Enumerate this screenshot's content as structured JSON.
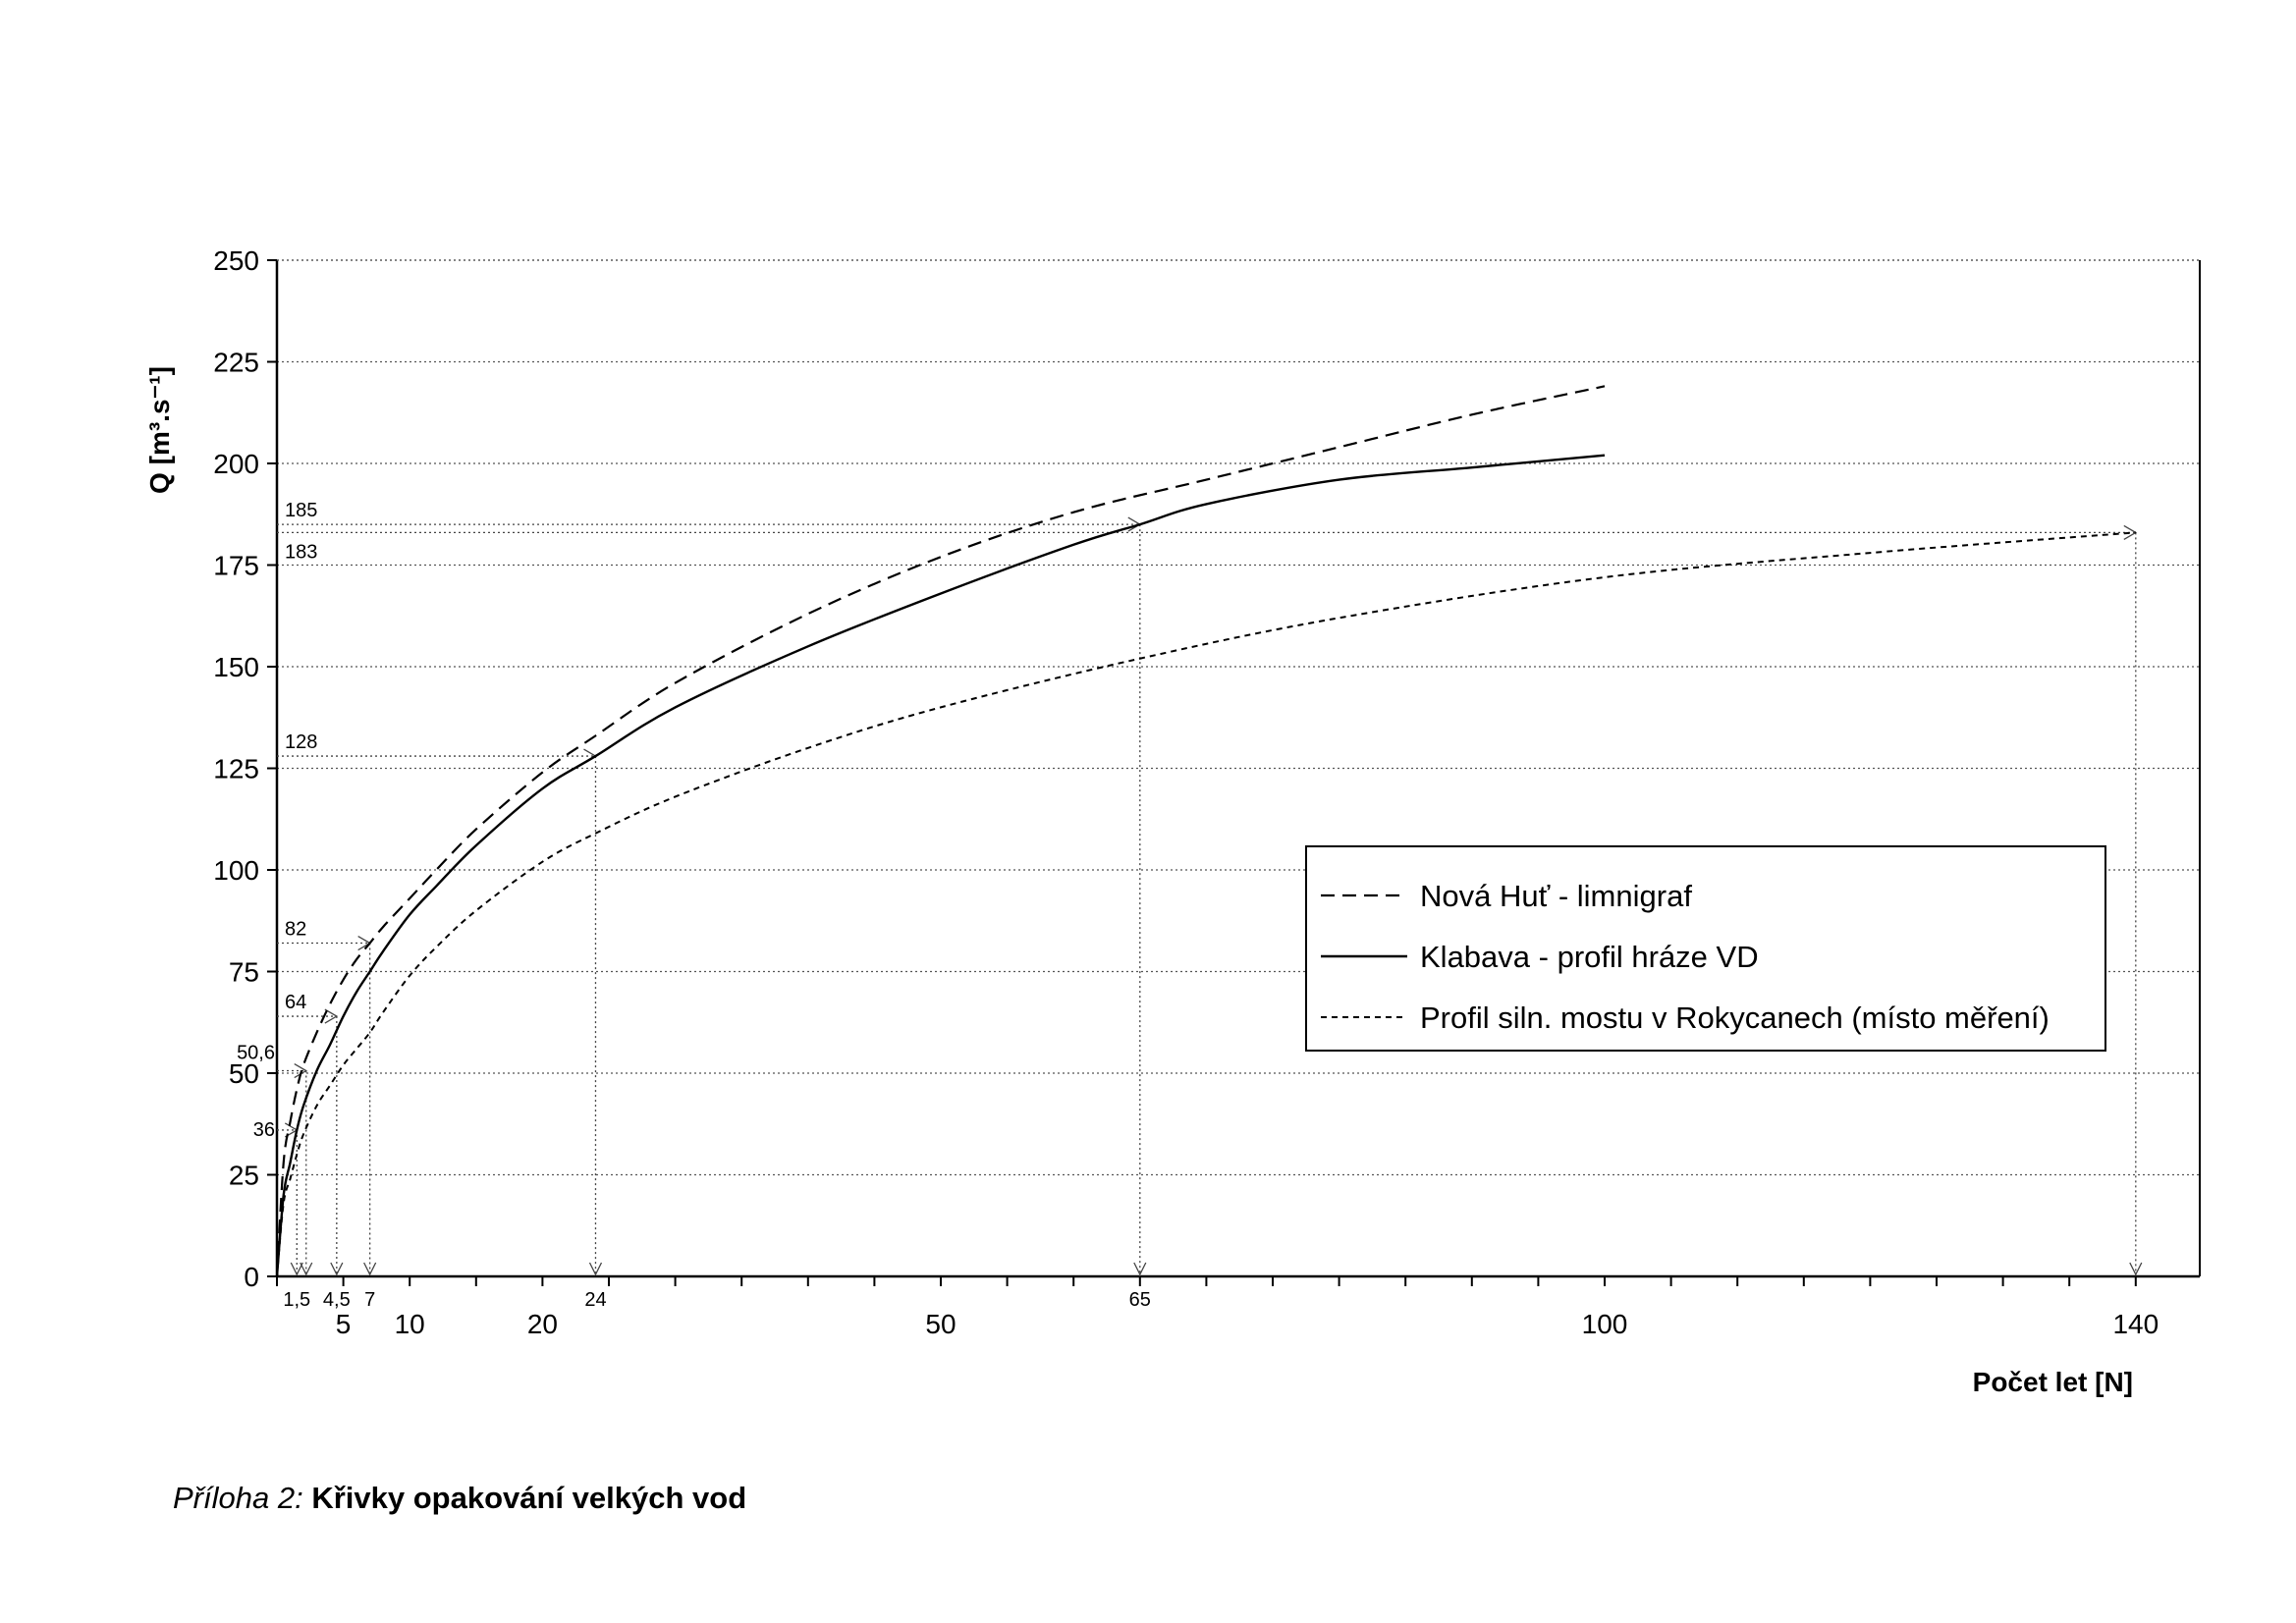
{
  "chart_data": {
    "type": "line",
    "title": "",
    "xlabel": "Počet let [N]",
    "ylabel": "Q [m³.s⁻¹]",
    "xlim": [
      0,
      145
    ],
    "ylim": [
      0,
      250
    ],
    "y_ticks": [
      0,
      25,
      50,
      75,
      100,
      125,
      150,
      175,
      200,
      225,
      250
    ],
    "x_tick_labels": [
      {
        "label": "5",
        "value": 5
      },
      {
        "label": "10",
        "value": 10
      },
      {
        "label": "20",
        "value": 20
      },
      {
        "label": "50",
        "value": 50
      },
      {
        "label": "100",
        "value": 100
      },
      {
        "label": "140",
        "value": 140
      }
    ],
    "grid": true,
    "legend_position": "right",
    "series": [
      {
        "name": "Nová Huť - limnigraf",
        "style": "dashed",
        "x": [
          0,
          0.5,
          1,
          1.5,
          2,
          3,
          4,
          5,
          6,
          7,
          8,
          10,
          12,
          15,
          20,
          24,
          30,
          40,
          50,
          60,
          70,
          80,
          90,
          100
        ],
        "y": [
          0,
          28,
          38,
          46,
          52,
          60,
          67,
          73,
          78,
          82,
          86,
          93,
          100,
          110,
          124,
          133,
          146,
          163,
          177,
          188,
          196,
          204,
          212,
          219
        ]
      },
      {
        "name": "Klabava - profil hráze VD",
        "style": "solid",
        "x": [
          0,
          0.5,
          1,
          1.5,
          2,
          3,
          4,
          5,
          6,
          7,
          8,
          10,
          12,
          15,
          20,
          24,
          30,
          40,
          50,
          60,
          65,
          70,
          80,
          90,
          100
        ],
        "y": [
          0,
          20,
          28,
          36,
          42,
          50.6,
          57,
          64,
          70,
          75,
          80,
          89,
          96,
          106,
          120,
          128,
          140,
          155,
          168,
          180,
          185,
          190,
          196,
          199,
          202
        ]
      },
      {
        "name": "Profil siln. mostu v Rokycanech (místo měření)",
        "style": "dotted",
        "x": [
          0,
          0.5,
          1,
          1.5,
          2,
          3,
          4,
          5,
          6,
          7,
          8,
          10,
          12,
          15,
          20,
          24,
          30,
          40,
          50,
          65,
          80,
          100,
          120,
          140
        ],
        "y": [
          0,
          18,
          24,
          30,
          35,
          42,
          47,
          52,
          56,
          60,
          65,
          74,
          81,
          90,
          102,
          109,
          118,
          130,
          140,
          152,
          162,
          172,
          178,
          183
        ]
      }
    ],
    "annotations": {
      "y_marks": [
        {
          "label": "185",
          "y": 185,
          "x_end": 65
        },
        {
          "label": "183",
          "y": 183,
          "x_end": 140
        },
        {
          "label": "128",
          "y": 128,
          "x_end": 24
        },
        {
          "label": "82",
          "y": 82,
          "x_end": 7
        },
        {
          "label": "64",
          "y": 64,
          "x_end": 4.5
        },
        {
          "label": "50,6",
          "y": 50.6,
          "x_end": 2.2
        },
        {
          "label": "36",
          "y": 36,
          "x_end": 1.5
        }
      ],
      "x_marks": [
        {
          "label": "1,5",
          "x": 1.5
        },
        {
          "label": "",
          "x": 2.2
        },
        {
          "label": "4,5",
          "x": 4.5
        },
        {
          "label": "7",
          "x": 7
        },
        {
          "label": "24",
          "x": 24
        },
        {
          "label": "65",
          "x": 65
        },
        {
          "label": "",
          "x": 140
        }
      ]
    }
  },
  "caption": {
    "prefix": "Příloha 2:",
    "title": "Křivky opakování velkých vod"
  }
}
